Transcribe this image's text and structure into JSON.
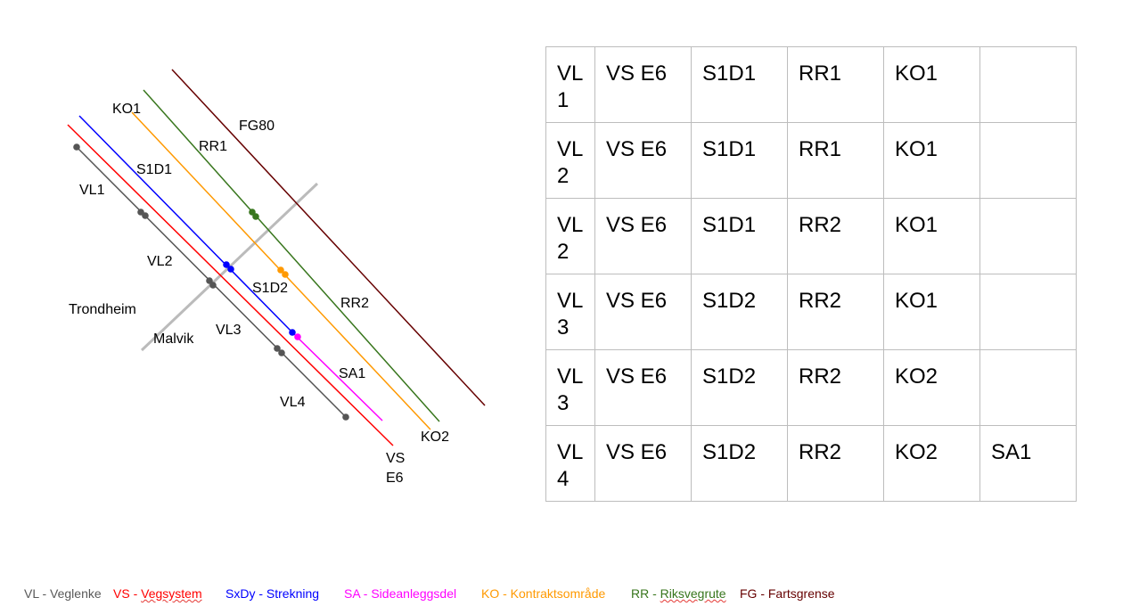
{
  "diagram": {
    "lines": [
      {
        "id": "VL",
        "color": "#555555"
      },
      {
        "id": "VS",
        "color": "#ff0000"
      },
      {
        "id": "S1D",
        "color": "#0000ff"
      },
      {
        "id": "SA",
        "color": "#ff00ff"
      },
      {
        "id": "KO",
        "color": "#ff9900"
      },
      {
        "id": "RR",
        "color": "#38761d"
      },
      {
        "id": "FG",
        "color": "#660000"
      },
      {
        "id": "border",
        "color": "#bbbbbb"
      }
    ],
    "labels": {
      "vl1": "VL1",
      "vl2": "VL2",
      "vl3": "VL3",
      "vl4": "VL4",
      "s1d1": "S1D1",
      "s1d2": "S1D2",
      "ko1": "KO1",
      "ko2": "KO2",
      "rr1": "RR1",
      "rr2": "RR2",
      "fg80": "FG80",
      "sa1": "SA1",
      "vs_line1": "VS",
      "vs_line2": "E6",
      "trondheim": "Trondheim",
      "malvik": "Malvik"
    }
  },
  "table": {
    "rows": [
      {
        "vl": "VL1",
        "vs": "VS E6",
        "s": "S1D1",
        "rr": "RR1",
        "ko": "KO1",
        "sa": ""
      },
      {
        "vl": "VL2",
        "vs": "VS E6",
        "s": "S1D1",
        "rr": "RR1",
        "ko": "KO1",
        "sa": ""
      },
      {
        "vl": "VL2",
        "vs": "VS E6",
        "s": "S1D1",
        "rr": "RR2",
        "ko": "KO1",
        "sa": ""
      },
      {
        "vl": "VL3",
        "vs": "VS E6",
        "s": "S1D2",
        "rr": "RR2",
        "ko": "KO1",
        "sa": ""
      },
      {
        "vl": "VL3",
        "vs": "VS E6",
        "s": "S1D2",
        "rr": "RR2",
        "ko": "KO2",
        "sa": ""
      },
      {
        "vl": "VL4",
        "vs": "VS E6",
        "s": "S1D2",
        "rr": "RR2",
        "ko": "KO2",
        "sa": "SA1"
      }
    ]
  },
  "legend": {
    "items": [
      {
        "key": "vl",
        "text": "VL - Veglenke",
        "color": "#595959"
      },
      {
        "key": "vs",
        "prefix": "VS - ",
        "text": "Vegsystem",
        "color": "#ff0000",
        "wavy": true
      },
      {
        "key": "sxdy",
        "text": "SxDy - Strekning",
        "color": "#0000ff"
      },
      {
        "key": "sa",
        "text": "SA - Sideanleggsdel",
        "color": "#ff00ff"
      },
      {
        "key": "ko",
        "text": "KO - Kontraktsområde",
        "color": "#ff9900"
      },
      {
        "key": "rr",
        "prefix": "RR - ",
        "text": "Riksvegrute",
        "color": "#38761d",
        "wavy": true
      },
      {
        "key": "fg",
        "text": "FG - Fartsgrense",
        "color": "#660000"
      }
    ]
  }
}
